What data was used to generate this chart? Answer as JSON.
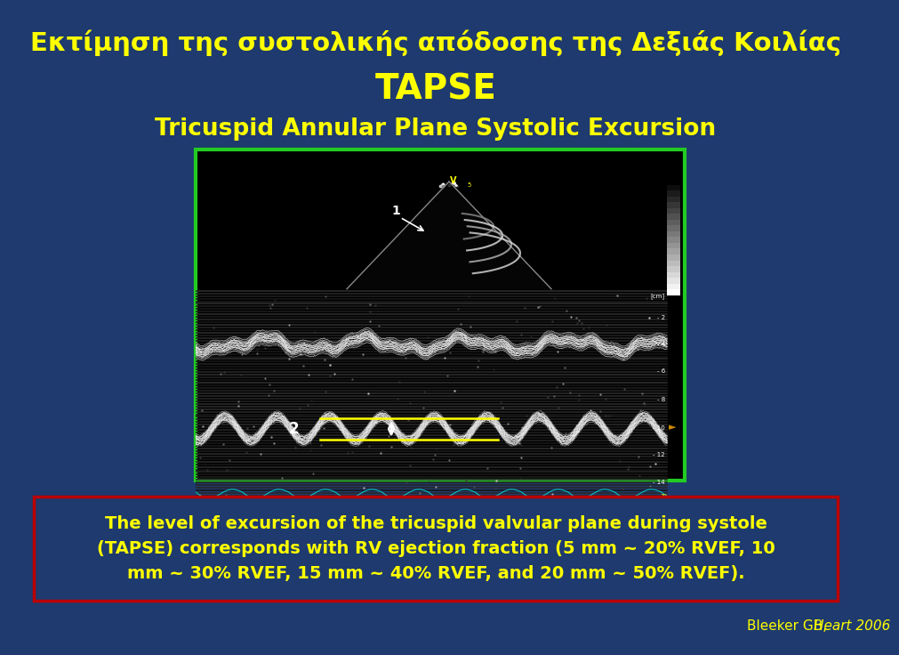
{
  "bg_color": "#1e3a6e",
  "title_greek": "Εκτίμηση της συστολικής απόδοσης της Δεξιάς Κοιλίας",
  "title_tapse": "TAPSE",
  "title_sub": "Tricuspid Annular Plane Systolic Excursion",
  "title_color": "#ffff00",
  "body_text_line1": "The level of excursion of the tricuspid valvular plane during systole",
  "body_text_line2": "(TAPSE) corresponds with RV ejection fraction (5 mm ~ 20% RVEF, 10",
  "body_text_line3": "mm ~ 30% RVEF, 15 mm ~ 40% RVEF, and 20 mm ~ 50% RVEF).",
  "body_text_color": "#ffff00",
  "box_border_color": "#bb0000",
  "box_bg_color": "#1e3a6e",
  "citation": "Bleeker GB, ",
  "citation_italic": "Heart 2006",
  "citation_color": "#ffff00",
  "image_border_color": "#22cc22",
  "fig_width": 9.6,
  "fig_height": 7.16
}
